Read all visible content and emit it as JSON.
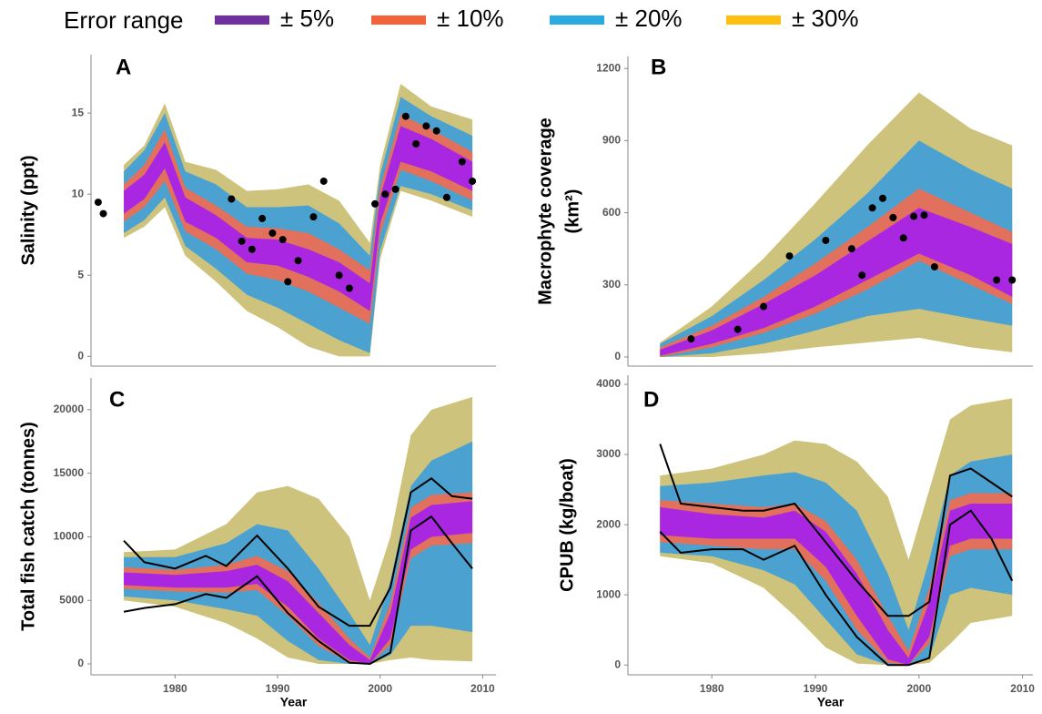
{
  "legend": {
    "title": "Error range",
    "items": [
      {
        "name": "± 5%",
        "color": "#7030a0"
      },
      {
        "name": "± 10%",
        "color": "#f4623a"
      },
      {
        "name": "± 20%",
        "color": "#29abe2"
      },
      {
        "name": "± 30%",
        "color": "#fdc010"
      }
    ]
  },
  "chart_data": [
    {
      "type": "band",
      "panel": "A",
      "ylabel": "Salinity (ppt)",
      "xlim": [
        1971.8,
        2011.3
      ],
      "ylim": [
        -0.6,
        18.6
      ],
      "yticks": [
        0,
        5,
        10,
        15
      ],
      "x": [
        1975,
        1977,
        1979,
        1981,
        1984,
        1987,
        1990,
        1993,
        1996,
        1999,
        2000,
        2002,
        2005,
        2009
      ],
      "bands": [
        {
          "color": "#a41ff0",
          "lower": [
            8.8,
            9.7,
            11.6,
            8.3,
            7.3,
            5.8,
            5.6,
            4.9,
            4.0,
            2.8,
            8.2,
            12.0,
            11.4,
            10.2
          ],
          "upper": [
            10.2,
            11.2,
            13.2,
            9.8,
            8.7,
            7.3,
            7.2,
            6.6,
            5.8,
            4.5,
            9.8,
            14.2,
            13.4,
            12.0
          ]
        },
        {
          "color": "#f26b4f",
          "lower": [
            8.3,
            9.2,
            10.8,
            7.7,
            6.6,
            5.1,
            4.7,
            4.0,
            3.0,
            2.0,
            7.5,
            11.5,
            10.8,
            9.6
          ],
          "upper": [
            10.6,
            11.8,
            14.0,
            10.4,
            9.3,
            8.0,
            7.9,
            7.6,
            6.6,
            5.3,
            10.4,
            14.9,
            14.0,
            12.6
          ]
        },
        {
          "color": "#3d9fd9",
          "lower": [
            7.6,
            8.4,
            9.8,
            6.8,
            5.4,
            3.8,
            3.0,
            2.0,
            1.0,
            0.2,
            6.5,
            10.5,
            10.0,
            9.0
          ],
          "upper": [
            11.4,
            12.7,
            15.0,
            11.4,
            10.6,
            9.2,
            9.2,
            9.3,
            8.2,
            6.2,
            11.2,
            16.0,
            14.8,
            13.6
          ]
        },
        {
          "color": "#c9bd6e",
          "lower": [
            7.3,
            8.0,
            9.2,
            6.2,
            4.6,
            2.8,
            1.8,
            0.6,
            0.0,
            0.0,
            6.0,
            10.2,
            9.6,
            8.6
          ],
          "upper": [
            11.8,
            13.0,
            15.6,
            12.0,
            11.5,
            10.2,
            10.3,
            10.6,
            9.6,
            7.0,
            11.8,
            16.8,
            15.4,
            14.6
          ]
        }
      ],
      "points": {
        "x": [
          1972.5,
          1973,
          1985.5,
          1986.5,
          1987.5,
          1988.5,
          1989.5,
          1990.5,
          1991,
          1992,
          1993.5,
          1994.5,
          1996,
          1997,
          1999.5,
          2000.5,
          2001.5,
          2002.5,
          2003.5,
          2004.5,
          2005.5,
          2006.5,
          2008,
          2009
        ],
        "y": [
          9.5,
          8.8,
          9.7,
          7.1,
          6.6,
          8.5,
          7.6,
          7.2,
          4.6,
          5.9,
          8.6,
          10.8,
          5.0,
          4.2,
          9.4,
          10.0,
          10.3,
          14.8,
          13.1,
          14.2,
          13.9,
          9.8,
          12.0,
          10.8
        ]
      }
    },
    {
      "type": "band",
      "panel": "B",
      "ylabel": [
        "Macrophyte coverage",
        "(km²)"
      ],
      "xlim": [
        1971.9,
        2011.0
      ],
      "ylim": [
        -38,
        1250
      ],
      "yticks": [
        0,
        300,
        600,
        900,
        1200
      ],
      "x": [
        1975,
        1980,
        1985,
        1990,
        1995,
        2000,
        2005,
        2009
      ],
      "bands": [
        {
          "color": "#a41ff0",
          "lower": [
            5,
            55,
            120,
            210,
            320,
            430,
            340,
            250
          ],
          "upper": [
            30,
            110,
            220,
            340,
            480,
            620,
            540,
            470
          ]
        },
        {
          "color": "#f26b4f",
          "lower": [
            0,
            40,
            100,
            180,
            280,
            400,
            300,
            220
          ],
          "upper": [
            40,
            130,
            250,
            390,
            540,
            700,
            600,
            520
          ]
        },
        {
          "color": "#3d9fd9",
          "lower": [
            0,
            15,
            55,
            110,
            170,
            200,
            160,
            130
          ],
          "upper": [
            55,
            170,
            320,
            490,
            680,
            900,
            780,
            700
          ]
        },
        {
          "color": "#c9bd6e",
          "lower": [
            0,
            0,
            15,
            40,
            60,
            80,
            40,
            20
          ],
          "upper": [
            60,
            210,
            410,
            640,
            880,
            1100,
            950,
            880
          ]
        }
      ],
      "points": {
        "x": [
          1978,
          1982.5,
          1985,
          1987.5,
          1991,
          1993.5,
          1994.5,
          1995.5,
          1996.5,
          1997.5,
          1998.5,
          1999.5,
          2000.5,
          2001.5,
          2007.5,
          2009
        ],
        "y": [
          75,
          115,
          210,
          420,
          485,
          450,
          340,
          620,
          660,
          580,
          495,
          585,
          590,
          375,
          320,
          320
        ]
      }
    },
    {
      "type": "band",
      "panel": "C",
      "ylabel": "Total fish catch (tonnes)",
      "xlabel": "Year",
      "xlim": [
        1971.8,
        2011.3
      ],
      "xticks": [
        1980,
        1990,
        2000,
        2010
      ],
      "ylim": [
        -860,
        22500
      ],
      "yticks": [
        0,
        5000,
        10000,
        15000,
        20000
      ],
      "x": [
        1975,
        1980,
        1985,
        1988,
        1991,
        1994,
        1997,
        1999,
        2001,
        2003,
        2005,
        2009
      ],
      "bands": [
        {
          "color": "#a41ff0",
          "lower": [
            6200,
            6000,
            6000,
            6300,
            4500,
            2000,
            300,
            0,
            2000,
            9000,
            10000,
            10300
          ],
          "upper": [
            7200,
            7000,
            7300,
            7800,
            6500,
            4000,
            1500,
            300,
            4000,
            11500,
            12500,
            12800
          ]
        },
        {
          "color": "#f26b4f",
          "lower": [
            5900,
            5700,
            5600,
            5800,
            3800,
            1400,
            100,
            0,
            1500,
            8300,
            9300,
            9500
          ],
          "upper": [
            7600,
            7400,
            7800,
            8500,
            7300,
            4800,
            2000,
            500,
            4800,
            12300,
            13300,
            13500
          ]
        },
        {
          "color": "#3d9fd9",
          "lower": [
            5300,
            5000,
            4300,
            3800,
            1800,
            300,
            0,
            0,
            700,
            3000,
            3000,
            2500
          ],
          "upper": [
            8400,
            8400,
            9500,
            11000,
            10500,
            7500,
            4000,
            1500,
            6500,
            14000,
            16000,
            17500
          ]
        },
        {
          "color": "#c9bd6e",
          "lower": [
            5000,
            4500,
            3200,
            2000,
            500,
            0,
            0,
            0,
            300,
            500,
            300,
            200
          ],
          "upper": [
            8800,
            9000,
            11000,
            13500,
            14000,
            13000,
            10000,
            5000,
            10000,
            18000,
            20000,
            21000
          ]
        }
      ],
      "lines": [
        {
          "color": "#000000",
          "x": [
            1975,
            1977,
            1980,
            1983,
            1985,
            1988,
            1991,
            1994,
            1997,
            1999,
            2001,
            2003,
            2005,
            2007,
            2009
          ],
          "values": [
            9700,
            8000,
            7500,
            8500,
            7700,
            10100,
            7500,
            4500,
            3000,
            3000,
            6000,
            13500,
            14600,
            13200,
            13000
          ]
        },
        {
          "color": "#000000",
          "x": [
            1975,
            1977,
            1980,
            1983,
            1985,
            1988,
            1991,
            1994,
            1997,
            1999,
            2001,
            2003,
            2005,
            2007,
            2009
          ],
          "values": [
            4100,
            4400,
            4700,
            5500,
            5200,
            6900,
            4000,
            1800,
            100,
            0,
            900,
            10500,
            11600,
            9500,
            7500
          ]
        }
      ]
    },
    {
      "type": "band",
      "panel": "D",
      "ylabel": "CPUB (kg/boat)",
      "xlabel": "Year",
      "xlim": [
        1971.9,
        2011.0
      ],
      "xticks": [
        1980,
        1990,
        2000,
        2010
      ],
      "ylim": [
        -140,
        4130
      ],
      "yticks": [
        0,
        1000,
        2000,
        3000,
        4000
      ],
      "x": [
        1975,
        1980,
        1985,
        1988,
        1991,
        1994,
        1997,
        1999,
        2001,
        2003,
        2005,
        2009
      ],
      "bands": [
        {
          "color": "#a41ff0",
          "lower": [
            1850,
            1800,
            1800,
            1800,
            1400,
            700,
            80,
            0,
            400,
            1700,
            1800,
            1800
          ],
          "upper": [
            2250,
            2150,
            2100,
            2200,
            1900,
            1300,
            500,
            100,
            900,
            2200,
            2300,
            2300
          ]
        },
        {
          "color": "#f26b4f",
          "lower": [
            1750,
            1700,
            1650,
            1650,
            1200,
            500,
            30,
            0,
            300,
            1550,
            1650,
            1650
          ],
          "upper": [
            2350,
            2300,
            2250,
            2300,
            2050,
            1500,
            700,
            200,
            1100,
            2350,
            2450,
            2450
          ]
        },
        {
          "color": "#3d9fd9",
          "lower": [
            1600,
            1550,
            1350,
            1150,
            650,
            150,
            0,
            0,
            100,
            1000,
            1100,
            1000
          ],
          "upper": [
            2550,
            2600,
            2700,
            2750,
            2600,
            2200,
            1300,
            500,
            1500,
            2700,
            2900,
            3000
          ]
        },
        {
          "color": "#c9bd6e",
          "lower": [
            1550,
            1450,
            1100,
            700,
            250,
            20,
            0,
            0,
            30,
            300,
            600,
            700
          ],
          "upper": [
            2700,
            2800,
            3000,
            3200,
            3150,
            2900,
            2400,
            1500,
            2500,
            3500,
            3700,
            3800
          ]
        }
      ],
      "lines": [
        {
          "color": "#000000",
          "x": [
            1975,
            1977,
            1980,
            1983,
            1985,
            1988,
            1991,
            1994,
            1997,
            1999,
            2001,
            2003,
            2005,
            2007,
            2009
          ],
          "values": [
            3150,
            2300,
            2250,
            2200,
            2200,
            2300,
            1750,
            1200,
            700,
            700,
            900,
            2700,
            2800,
            2600,
            2400
          ]
        },
        {
          "color": "#000000",
          "x": [
            1975,
            1977,
            1980,
            1983,
            1985,
            1988,
            1991,
            1994,
            1997,
            1999,
            2001,
            2003,
            2005,
            2007,
            2009
          ],
          "values": [
            1900,
            1600,
            1650,
            1650,
            1500,
            1700,
            1000,
            400,
            0,
            0,
            100,
            2000,
            2200,
            1800,
            1200
          ]
        }
      ]
    }
  ]
}
